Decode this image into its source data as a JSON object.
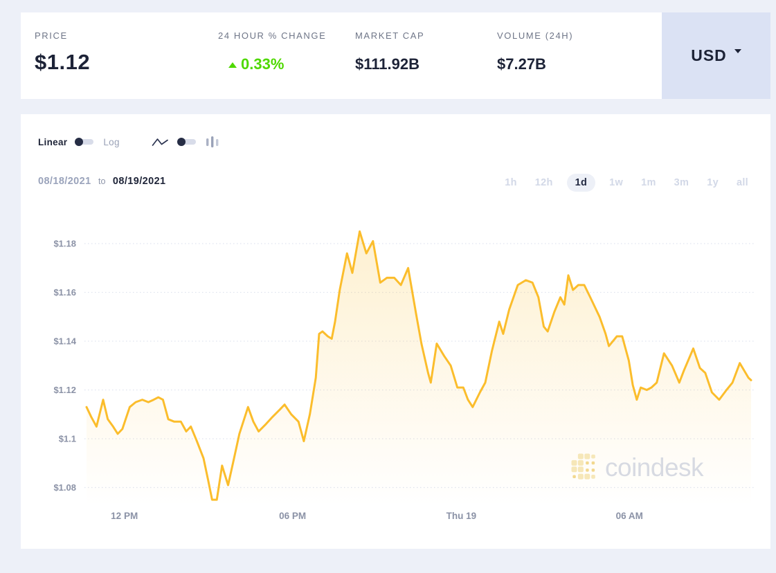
{
  "header": {
    "stats": [
      {
        "label": "PRICE",
        "value": "$1.12"
      },
      {
        "label": "24 HOUR % CHANGE",
        "value": "0.33%",
        "direction": "up",
        "color": "#4fd800"
      },
      {
        "label": "MARKET CAP",
        "value": "$111.92B"
      },
      {
        "label": "VOLUME (24H)",
        "value": "$7.27B"
      }
    ],
    "currency": {
      "label": "USD"
    }
  },
  "controls": {
    "scale": {
      "left_label": "Linear",
      "right_label": "Log",
      "selected": "Linear"
    },
    "chart_type": {
      "options": [
        "line",
        "bar"
      ],
      "selected": "line"
    }
  },
  "date_range": {
    "from": "08/18/2021",
    "separator": "to",
    "to": "08/19/2021"
  },
  "ranges": {
    "options": [
      "1h",
      "12h",
      "1d",
      "1w",
      "1m",
      "3m",
      "1y",
      "all"
    ],
    "selected": "1d"
  },
  "watermark": {
    "text": "coindesk"
  },
  "chart_data": {
    "type": "area-line",
    "title": "Price chart 08/18/2021 to 08/19/2021 (1d)",
    "line_color": "#fbbd2c",
    "grid": true,
    "y_domain": [
      1.074,
      1.186
    ],
    "y_ticks": [
      {
        "label": "$1.18",
        "value": 1.18
      },
      {
        "label": "$1.16",
        "value": 1.16
      },
      {
        "label": "$1.14",
        "value": 1.14
      },
      {
        "label": "$1.12",
        "value": 1.12
      },
      {
        "label": "$1.1",
        "value": 1.1
      },
      {
        "label": "$1.08",
        "value": 1.08
      }
    ],
    "x_ticks": [
      {
        "label": "12 PM",
        "pos": 0.057
      },
      {
        "label": "06 PM",
        "pos": 0.31
      },
      {
        "label": "Thu 19",
        "pos": 0.564
      },
      {
        "label": "06 AM",
        "pos": 0.817
      }
    ],
    "points": [
      [
        0.0,
        1.113
      ],
      [
        0.007,
        1.109
      ],
      [
        0.015,
        1.105
      ],
      [
        0.025,
        1.116
      ],
      [
        0.032,
        1.108
      ],
      [
        0.04,
        1.105
      ],
      [
        0.047,
        1.102
      ],
      [
        0.054,
        1.104
      ],
      [
        0.065,
        1.113
      ],
      [
        0.074,
        1.115
      ],
      [
        0.084,
        1.116
      ],
      [
        0.093,
        1.115
      ],
      [
        0.101,
        1.116
      ],
      [
        0.108,
        1.117
      ],
      [
        0.115,
        1.116
      ],
      [
        0.123,
        1.108
      ],
      [
        0.132,
        1.107
      ],
      [
        0.142,
        1.107
      ],
      [
        0.15,
        1.103
      ],
      [
        0.157,
        1.105
      ],
      [
        0.166,
        1.099
      ],
      [
        0.176,
        1.092
      ],
      [
        0.183,
        1.083
      ],
      [
        0.189,
        1.075
      ],
      [
        0.196,
        1.075
      ],
      [
        0.204,
        1.089
      ],
      [
        0.213,
        1.081
      ],
      [
        0.222,
        1.092
      ],
      [
        0.23,
        1.102
      ],
      [
        0.243,
        1.113
      ],
      [
        0.251,
        1.107
      ],
      [
        0.259,
        1.103
      ],
      [
        0.27,
        1.106
      ],
      [
        0.28,
        1.109
      ],
      [
        0.291,
        1.112
      ],
      [
        0.298,
        1.114
      ],
      [
        0.308,
        1.11
      ],
      [
        0.319,
        1.107
      ],
      [
        0.327,
        1.099
      ],
      [
        0.336,
        1.11
      ],
      [
        0.345,
        1.125
      ],
      [
        0.35,
        1.143
      ],
      [
        0.355,
        1.144
      ],
      [
        0.363,
        1.142
      ],
      [
        0.369,
        1.141
      ],
      [
        0.374,
        1.148
      ],
      [
        0.381,
        1.161
      ],
      [
        0.392,
        1.176
      ],
      [
        0.4,
        1.168
      ],
      [
        0.411,
        1.185
      ],
      [
        0.421,
        1.176
      ],
      [
        0.431,
        1.181
      ],
      [
        0.442,
        1.164
      ],
      [
        0.452,
        1.166
      ],
      [
        0.463,
        1.166
      ],
      [
        0.473,
        1.163
      ],
      [
        0.484,
        1.17
      ],
      [
        0.496,
        1.151
      ],
      [
        0.504,
        1.139
      ],
      [
        0.514,
        1.127
      ],
      [
        0.518,
        1.123
      ],
      [
        0.527,
        1.139
      ],
      [
        0.538,
        1.134
      ],
      [
        0.548,
        1.13
      ],
      [
        0.558,
        1.121
      ],
      [
        0.567,
        1.121
      ],
      [
        0.574,
        1.116
      ],
      [
        0.581,
        1.113
      ],
      [
        0.592,
        1.119
      ],
      [
        0.6,
        1.123
      ],
      [
        0.61,
        1.136
      ],
      [
        0.621,
        1.148
      ],
      [
        0.627,
        1.143
      ],
      [
        0.636,
        1.153
      ],
      [
        0.649,
        1.163
      ],
      [
        0.661,
        1.165
      ],
      [
        0.671,
        1.164
      ],
      [
        0.68,
        1.158
      ],
      [
        0.688,
        1.146
      ],
      [
        0.694,
        1.144
      ],
      [
        0.704,
        1.152
      ],
      [
        0.713,
        1.158
      ],
      [
        0.719,
        1.155
      ],
      [
        0.725,
        1.167
      ],
      [
        0.732,
        1.161
      ],
      [
        0.74,
        1.163
      ],
      [
        0.749,
        1.163
      ],
      [
        0.758,
        1.158
      ],
      [
        0.772,
        1.15
      ],
      [
        0.781,
        1.143
      ],
      [
        0.786,
        1.138
      ],
      [
        0.798,
        1.142
      ],
      [
        0.806,
        1.142
      ],
      [
        0.816,
        1.132
      ],
      [
        0.822,
        1.122
      ],
      [
        0.828,
        1.116
      ],
      [
        0.834,
        1.121
      ],
      [
        0.843,
        1.12
      ],
      [
        0.85,
        1.121
      ],
      [
        0.858,
        1.123
      ],
      [
        0.869,
        1.135
      ],
      [
        0.881,
        1.13
      ],
      [
        0.892,
        1.123
      ],
      [
        0.899,
        1.128
      ],
      [
        0.913,
        1.137
      ],
      [
        0.923,
        1.129
      ],
      [
        0.931,
        1.127
      ],
      [
        0.941,
        1.119
      ],
      [
        0.952,
        1.116
      ],
      [
        0.963,
        1.12
      ],
      [
        0.972,
        1.123
      ],
      [
        0.983,
        1.131
      ],
      [
        0.996,
        1.125
      ],
      [
        1.0,
        1.124
      ]
    ]
  }
}
